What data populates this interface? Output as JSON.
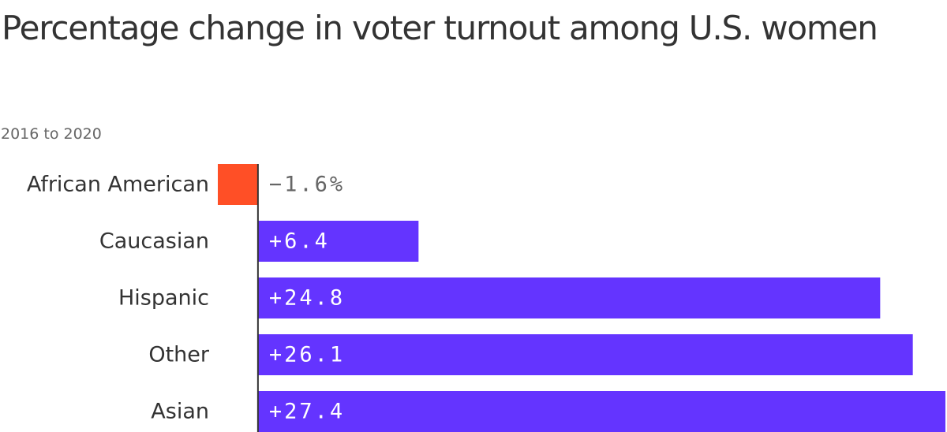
{
  "title": "Percentage change in voter turnout among U.S. women",
  "subtitle": "2016 to 2020",
  "colors": {
    "positive": "#6434ff",
    "negative": "#ff4f26",
    "axis": "#333333",
    "label_inside": "#ffffff",
    "label_outside": "#666666"
  },
  "chart_data": {
    "type": "bar",
    "orientation": "horizontal",
    "title": "Percentage change in voter turnout among U.S. women",
    "subtitle": "2016 to 2020",
    "xlabel": "",
    "ylabel": "",
    "categories": [
      "African American",
      "Caucasian",
      "Hispanic",
      "Other",
      "Asian"
    ],
    "values": [
      -1.6,
      6.4,
      24.8,
      26.1,
      27.4
    ],
    "value_labels": [
      "−1.6%",
      "+6.4",
      "+24.8",
      "+26.1",
      "+27.4"
    ],
    "xlim": [
      -1.6,
      27.4
    ],
    "grid": false,
    "legend": "none"
  }
}
